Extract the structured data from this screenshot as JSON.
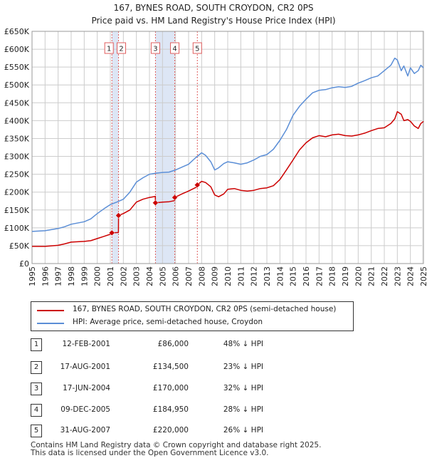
{
  "chart_data": {
    "type": "line",
    "title": "167, BYNES ROAD, SOUTH CROYDON, CR2 0PS",
    "subtitle": "Price paid vs. HM Land Registry's House Price Index (HPI)",
    "xlabel": "",
    "ylabel": "",
    "xlim": [
      1995,
      2025
    ],
    "ylim": [
      0,
      650000
    ],
    "yticks": [
      0,
      50000,
      100000,
      150000,
      200000,
      250000,
      300000,
      350000,
      400000,
      450000,
      500000,
      550000,
      600000,
      650000
    ],
    "yticklabels": [
      "£0",
      "£50K",
      "£100K",
      "£150K",
      "£200K",
      "£250K",
      "£300K",
      "£350K",
      "£400K",
      "£450K",
      "£500K",
      "£550K",
      "£600K",
      "£650K"
    ],
    "xticks": [
      1995,
      1996,
      1997,
      1998,
      1999,
      2000,
      2001,
      2002,
      2003,
      2004,
      2005,
      2006,
      2007,
      2008,
      2009,
      2010,
      2011,
      2012,
      2013,
      2014,
      2015,
      2016,
      2017,
      2018,
      2019,
      2020,
      2021,
      2022,
      2023,
      2024,
      2025
    ],
    "grid": true,
    "colors": {
      "property": "#cc0000",
      "hpi": "#5b8ed6",
      "band": "#dde6f5",
      "marker_line": "#e05c5c",
      "grid": "#cccccc"
    },
    "series": [
      {
        "name": "167, BYNES ROAD, SOUTH CROYDON, CR2 0PS (semi-detached house)",
        "color": "#cc0000",
        "x": [
          1995.0,
          1996.0,
          1997.0,
          1997.5,
          1998.0,
          1999.0,
          1999.5,
          2000.0,
          2000.5,
          2001.0,
          2001.12,
          2001.13,
          2001.62,
          2001.63,
          2002.0,
          2002.5,
          2003.0,
          2003.5,
          2004.0,
          2004.45,
          2004.46,
          2005.0,
          2005.5,
          2005.93,
          2005.94,
          2006.5,
          2007.0,
          2007.66,
          2007.67,
          2008.0,
          2008.3,
          2008.7,
          2009.0,
          2009.3,
          2009.7,
          2010.0,
          2010.5,
          2011.0,
          2011.5,
          2012.0,
          2012.5,
          2013.0,
          2013.5,
          2014.0,
          2014.5,
          2015.0,
          2015.5,
          2016.0,
          2016.5,
          2017.0,
          2017.5,
          2018.0,
          2018.5,
          2019.0,
          2019.5,
          2020.0,
          2020.5,
          2021.0,
          2021.5,
          2022.0,
          2022.5,
          2022.8,
          2023.0,
          2023.3,
          2023.5,
          2023.8,
          2024.0,
          2024.3,
          2024.6,
          2024.8,
          2025.0
        ],
        "y": [
          48000,
          48000,
          51000,
          55000,
          60000,
          62000,
          64000,
          70000,
          76000,
          82000,
          86000,
          86000,
          87000,
          134500,
          140000,
          150000,
          172000,
          180000,
          185000,
          188000,
          170000,
          172000,
          173000,
          176000,
          184950,
          195000,
          203000,
          215000,
          220000,
          230000,
          227000,
          215000,
          192000,
          187000,
          195000,
          208000,
          210000,
          205000,
          203000,
          205000,
          210000,
          212000,
          218000,
          235000,
          262000,
          290000,
          318000,
          338000,
          352000,
          358000,
          355000,
          360000,
          362000,
          358000,
          357000,
          360000,
          365000,
          372000,
          378000,
          380000,
          392000,
          405000,
          425000,
          418000,
          400000,
          403000,
          398000,
          385000,
          378000,
          392000,
          398000
        ]
      },
      {
        "name": "HPI: Average price, semi-detached house, Croydon",
        "color": "#5b8ed6",
        "x": [
          1995.0,
          1996.0,
          1997.0,
          1997.5,
          1998.0,
          1999.0,
          1999.5,
          2000.0,
          2000.5,
          2001.0,
          2001.5,
          2002.0,
          2002.5,
          2003.0,
          2003.5,
          2004.0,
          2004.5,
          2005.0,
          2005.5,
          2006.0,
          2006.5,
          2007.0,
          2007.5,
          2008.0,
          2008.3,
          2008.7,
          2009.0,
          2009.3,
          2009.7,
          2010.0,
          2010.5,
          2011.0,
          2011.5,
          2012.0,
          2012.5,
          2013.0,
          2013.5,
          2014.0,
          2014.5,
          2015.0,
          2015.5,
          2016.0,
          2016.5,
          2017.0,
          2017.5,
          2018.0,
          2018.5,
          2019.0,
          2019.5,
          2020.0,
          2020.5,
          2021.0,
          2021.5,
          2022.0,
          2022.5,
          2022.8,
          2023.0,
          2023.3,
          2023.5,
          2023.8,
          2024.0,
          2024.3,
          2024.6,
          2024.8,
          2025.0
        ],
        "y": [
          90000,
          92000,
          98000,
          103000,
          110000,
          117000,
          125000,
          140000,
          153000,
          165000,
          172000,
          180000,
          200000,
          228000,
          240000,
          250000,
          253000,
          255000,
          256000,
          262000,
          270000,
          278000,
          295000,
          310000,
          303000,
          285000,
          262000,
          268000,
          280000,
          285000,
          282000,
          278000,
          282000,
          290000,
          300000,
          305000,
          320000,
          345000,
          375000,
          415000,
          440000,
          460000,
          478000,
          485000,
          487000,
          492000,
          495000,
          493000,
          496000,
          505000,
          512000,
          520000,
          525000,
          540000,
          555000,
          575000,
          570000,
          540000,
          553000,
          525000,
          548000,
          532000,
          540000,
          555000,
          548000
        ]
      }
    ],
    "sales": [
      {
        "id": "1",
        "x": 2001.12,
        "y": 86000
      },
      {
        "id": "2",
        "x": 2001.63,
        "y": 134500
      },
      {
        "id": "3",
        "x": 2004.46,
        "y": 170000
      },
      {
        "id": "4",
        "x": 2005.94,
        "y": 184950
      },
      {
        "id": "5",
        "x": 2007.67,
        "y": 220000
      }
    ],
    "shaded_bands": [
      [
        2001.12,
        2001.63
      ],
      [
        2004.46,
        2005.94
      ]
    ]
  },
  "legend": {
    "property_label": "167, BYNES ROAD, SOUTH CROYDON, CR2 0PS (semi-detached house)",
    "hpi_label": "HPI: Average price, semi-detached house, Croydon"
  },
  "transactions": [
    {
      "id": "1",
      "date": "12-FEB-2001",
      "price": "£86,000",
      "hpi": "48% ↓ HPI"
    },
    {
      "id": "2",
      "date": "17-AUG-2001",
      "price": "£134,500",
      "hpi": "23% ↓ HPI"
    },
    {
      "id": "3",
      "date": "17-JUN-2004",
      "price": "£170,000",
      "hpi": "32% ↓ HPI"
    },
    {
      "id": "4",
      "date": "09-DEC-2005",
      "price": "£184,950",
      "hpi": "28% ↓ HPI"
    },
    {
      "id": "5",
      "date": "31-AUG-2007",
      "price": "£220,000",
      "hpi": "26% ↓ HPI"
    }
  ],
  "footer": {
    "line1": "Contains HM Land Registry data © Crown copyright and database right 2025.",
    "line2": "This data is licensed under the Open Government Licence v3.0."
  }
}
